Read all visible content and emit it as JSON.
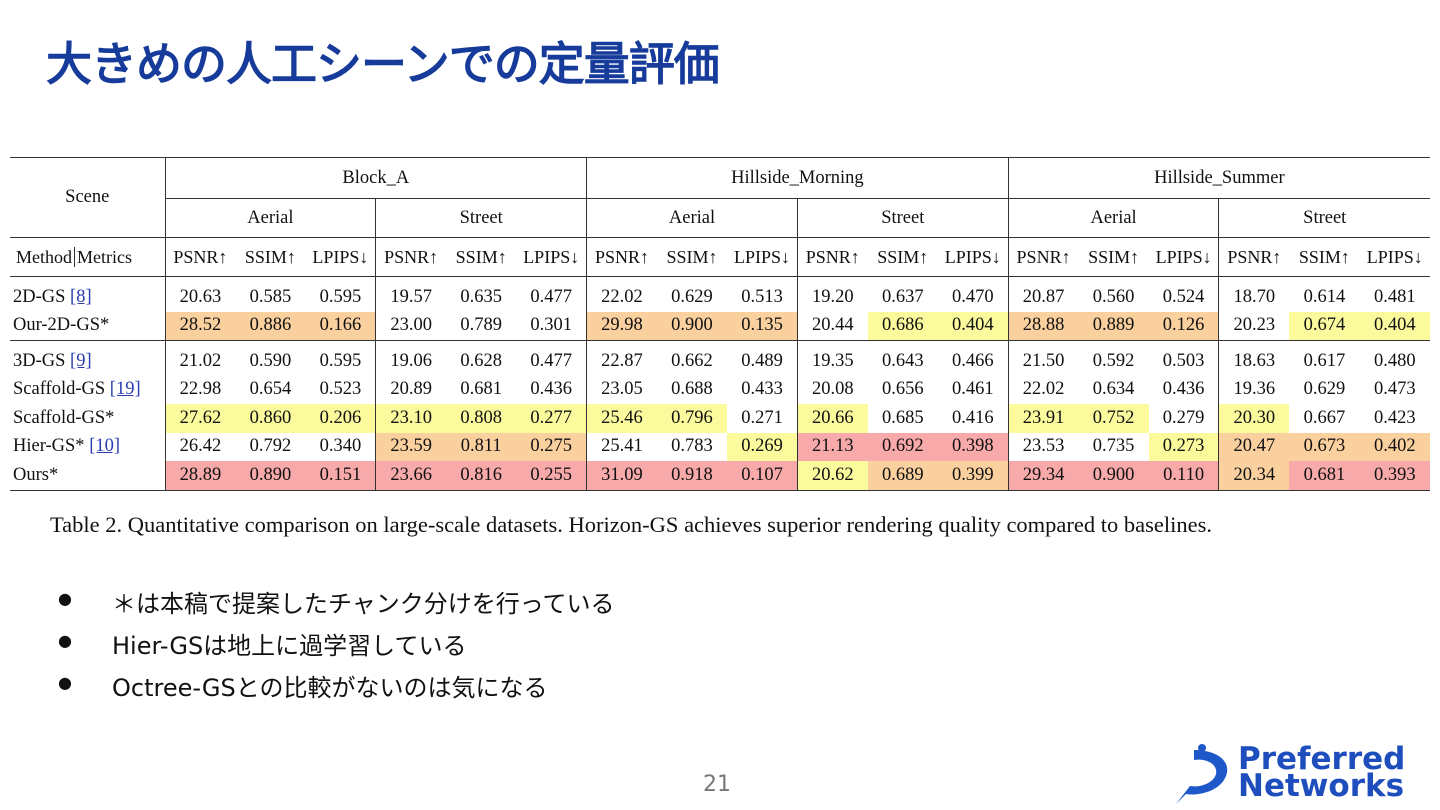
{
  "header": {
    "title": "大きめの人工シーンでの定量評価"
  },
  "table": {
    "scene_label": "Scene",
    "method_label": "Method",
    "metrics_label": "Metrics",
    "scenes": [
      "Block_A",
      "Hillside_Morning",
      "Hillside_Summer"
    ],
    "views": [
      "Aerial",
      "Street"
    ],
    "metrics": [
      "PSNR↑",
      "SSIM↑",
      "LPIPS↓"
    ],
    "palette": {
      "r": "#f8a9a9",
      "o": "#fbd09f",
      "y": "#fbfb9e"
    },
    "groups": [
      [
        {
          "method": "2D-GS",
          "ref": "[8]",
          "cells": [
            "20.63",
            "0.585",
            "0.595",
            "19.57",
            "0.635",
            "0.477",
            "22.02",
            "0.629",
            "0.513",
            "19.20",
            "0.637",
            "0.470",
            "20.87",
            "0.560",
            "0.524",
            "18.70",
            "0.614",
            "0.481"
          ],
          "fills": [
            null,
            null,
            null,
            null,
            null,
            null,
            null,
            null,
            null,
            null,
            null,
            null,
            null,
            null,
            null,
            null,
            null,
            null
          ]
        },
        {
          "method": "Our-2D-GS*",
          "cells": [
            "28.52",
            "0.886",
            "0.166",
            "23.00",
            "0.789",
            "0.301",
            "29.98",
            "0.900",
            "0.135",
            "20.44",
            "0.686",
            "0.404",
            "28.88",
            "0.889",
            "0.126",
            "20.23",
            "0.674",
            "0.404"
          ],
          "fills": [
            "o",
            "o",
            "o",
            null,
            null,
            null,
            "o",
            "o",
            "o",
            null,
            "y",
            "y",
            "o",
            "o",
            "o",
            null,
            "y",
            "y"
          ]
        }
      ],
      [
        {
          "method": "3D-GS",
          "ref": "[9]",
          "cells": [
            "21.02",
            "0.590",
            "0.595",
            "19.06",
            "0.628",
            "0.477",
            "22.87",
            "0.662",
            "0.489",
            "19.35",
            "0.643",
            "0.466",
            "21.50",
            "0.592",
            "0.503",
            "18.63",
            "0.617",
            "0.480"
          ],
          "fills": [
            null,
            null,
            null,
            null,
            null,
            null,
            null,
            null,
            null,
            null,
            null,
            null,
            null,
            null,
            null,
            null,
            null,
            null
          ]
        },
        {
          "method": "Scaffold-GS",
          "ref": "[19]",
          "cells": [
            "22.98",
            "0.654",
            "0.523",
            "20.89",
            "0.681",
            "0.436",
            "23.05",
            "0.688",
            "0.433",
            "20.08",
            "0.656",
            "0.461",
            "22.02",
            "0.634",
            "0.436",
            "19.36",
            "0.629",
            "0.473"
          ],
          "fills": [
            null,
            null,
            null,
            null,
            null,
            null,
            null,
            null,
            null,
            null,
            null,
            null,
            null,
            null,
            null,
            null,
            null,
            null
          ]
        },
        {
          "method": "Scaffold-GS*",
          "cells": [
            "27.62",
            "0.860",
            "0.206",
            "23.10",
            "0.808",
            "0.277",
            "25.46",
            "0.796",
            "0.271",
            "20.66",
            "0.685",
            "0.416",
            "23.91",
            "0.752",
            "0.279",
            "20.30",
            "0.667",
            "0.423"
          ],
          "fills": [
            "y",
            "y",
            "y",
            "y",
            "y",
            "y",
            "y",
            "y",
            null,
            "y",
            null,
            null,
            "y",
            "y",
            null,
            "y",
            null,
            null
          ]
        },
        {
          "method": "Hier-GS*",
          "ref": "[10]",
          "cells": [
            "26.42",
            "0.792",
            "0.340",
            "23.59",
            "0.811",
            "0.275",
            "25.41",
            "0.783",
            "0.269",
            "21.13",
            "0.692",
            "0.398",
            "23.53",
            "0.735",
            "0.273",
            "20.47",
            "0.673",
            "0.402"
          ],
          "fills": [
            null,
            null,
            null,
            "o",
            "o",
            "o",
            null,
            null,
            "y",
            "r",
            "r",
            "r",
            null,
            null,
            "y",
            "o",
            "o",
            "o"
          ]
        },
        {
          "method": "Ours*",
          "cells": [
            "28.89",
            "0.890",
            "0.151",
            "23.66",
            "0.816",
            "0.255",
            "31.09",
            "0.918",
            "0.107",
            "20.62",
            "0.689",
            "0.399",
            "29.34",
            "0.900",
            "0.110",
            "20.34",
            "0.681",
            "0.393"
          ],
          "fills": [
            "r",
            "r",
            "r",
            "r",
            "r",
            "r",
            "r",
            "r",
            "r",
            "y",
            "o",
            "o",
            "r",
            "r",
            "r",
            "o",
            "r",
            "r"
          ]
        }
      ]
    ]
  },
  "caption": "Table 2. Quantitative comparison on large-scale datasets. Horizon-GS achieves superior rendering quality compared to baselines.",
  "bullets": [
    "＊は本稿で提案したチャンク分けを行っている",
    "Hier-GSは地上に過学習している",
    "Octree-GSとの比較がないのは気になる"
  ],
  "page_number": "21",
  "logo": {
    "line1": "Preferred",
    "line2": "Networks"
  }
}
